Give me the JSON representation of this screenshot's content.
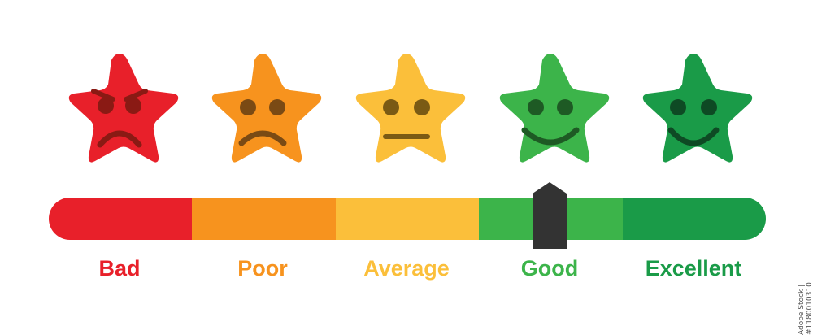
{
  "rating_scale": {
    "levels": [
      {
        "key": "bad",
        "label": "Bad",
        "color": "#e8202a",
        "face_color": "#8a1a14",
        "face": "angry"
      },
      {
        "key": "poor",
        "label": "Poor",
        "color": "#f7931e",
        "face_color": "#7a4a14",
        "face": "sad"
      },
      {
        "key": "average",
        "label": "Average",
        "color": "#fbbf3a",
        "face_color": "#7a5a14",
        "face": "neutral"
      },
      {
        "key": "good",
        "label": "Good",
        "color": "#3cb44a",
        "face_color": "#1e5a24",
        "face": "smile"
      },
      {
        "key": "excellent",
        "label": "Excellent",
        "color": "#1a9b48",
        "face_color": "#0e4a24",
        "face": "smile"
      }
    ],
    "bar_segments": [
      "#e8202a",
      "#f7931e",
      "#fbbf3a",
      "#3cb44a",
      "#1a9b48"
    ],
    "pointer_color": "#333333",
    "selected_level": "good",
    "selected_position": 0.67
  },
  "watermark": {
    "stock_id": "Adobe Stock | #1180010310"
  }
}
